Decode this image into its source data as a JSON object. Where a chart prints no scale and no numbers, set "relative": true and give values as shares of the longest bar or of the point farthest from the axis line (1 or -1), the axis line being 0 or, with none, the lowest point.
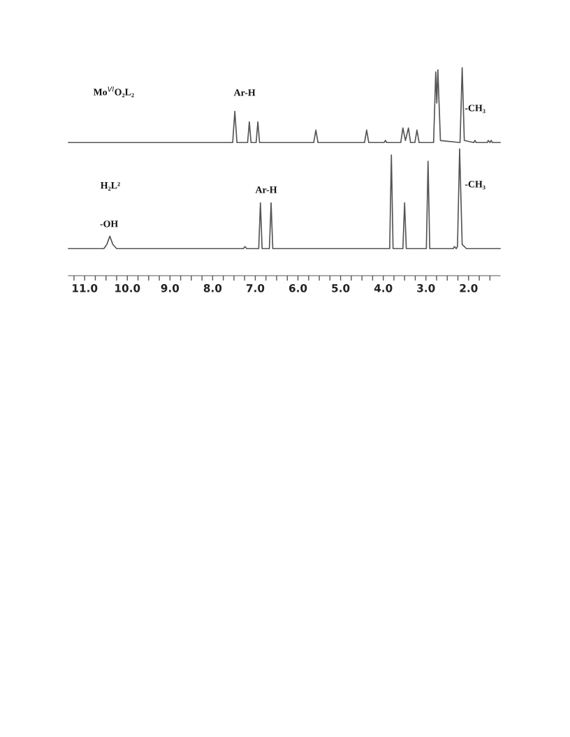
{
  "chart_data": {
    "type": "line",
    "relative": true,
    "xlim": [
      11.38,
      1.26
    ],
    "tick_labels": "x",
    "marker": "none",
    "line_style": "solid",
    "xticks": [
      {
        "value": 11.0,
        "label": "11.0"
      },
      {
        "value": 10.0,
        "label": "10.0"
      },
      {
        "value": 9.0,
        "label": "9.0"
      },
      {
        "value": 8.0,
        "label": "8.0"
      },
      {
        "value": 7.0,
        "label": "7.0"
      },
      {
        "value": 6.0,
        "label": "6.0"
      },
      {
        "value": 5.0,
        "label": "5.0"
      },
      {
        "value": 4.0,
        "label": "4.0"
      },
      {
        "value": 3.0,
        "label": "3.0"
      },
      {
        "value": 2.0,
        "label": "2.0"
      },
      {
        "value": 11.25,
        "label": null
      },
      {
        "value": 10.75,
        "label": null
      },
      {
        "value": 10.5,
        "label": null
      },
      {
        "value": 10.25,
        "label": null
      },
      {
        "value": 9.75,
        "label": null
      },
      {
        "value": 9.5,
        "label": null
      },
      {
        "value": 9.25,
        "label": null
      },
      {
        "value": 8.75,
        "label": null
      },
      {
        "value": 8.5,
        "label": null
      },
      {
        "value": 8.25,
        "label": null
      },
      {
        "value": 7.75,
        "label": null
      },
      {
        "value": 7.5,
        "label": null
      },
      {
        "value": 7.25,
        "label": null
      },
      {
        "value": 6.75,
        "label": null
      },
      {
        "value": 6.5,
        "label": null
      },
      {
        "value": 6.25,
        "label": null
      },
      {
        "value": 5.75,
        "label": null
      },
      {
        "value": 5.5,
        "label": null
      },
      {
        "value": 5.25,
        "label": null
      },
      {
        "value": 4.75,
        "label": null
      },
      {
        "value": 4.5,
        "label": null
      },
      {
        "value": 4.25,
        "label": null
      },
      {
        "value": 3.75,
        "label": null
      },
      {
        "value": 3.5,
        "label": null
      },
      {
        "value": 3.25,
        "label": null
      },
      {
        "value": 2.75,
        "label": null
      },
      {
        "value": 2.5,
        "label": null
      },
      {
        "value": 2.25,
        "label": null
      },
      {
        "value": 1.75,
        "label": null
      },
      {
        "value": 1.5,
        "label": null
      }
    ],
    "annotations": [
      "Mo$^{VI}$O₂L₂",
      "Ar-H",
      "-CH₃",
      "H₂L²",
      "-OH",
      "Ar-H",
      "-CH₃"
    ],
    "series": [
      {
        "color": "#555555",
        "x": [
          11.38,
          7.53,
          7.48,
          7.43,
          7.18,
          7.14,
          7.1,
          6.98,
          6.94,
          6.9,
          5.63,
          5.58,
          5.53,
          4.44,
          4.39,
          4.34,
          3.98,
          3.95,
          3.92,
          3.59,
          3.54,
          3.48,
          3.41,
          3.36,
          3.26,
          3.21,
          3.16,
          2.82,
          2.77,
          2.745,
          2.72,
          2.66,
          2.2,
          2.15,
          2.1,
          1.88,
          1.85,
          1.82,
          1.56,
          1.54,
          1.5,
          1.47,
          1.44,
          1.26
        ],
        "values": [
          0.64,
          0.64,
          0.79,
          0.64,
          0.64,
          0.74,
          0.64,
          0.64,
          0.74,
          0.64,
          0.64,
          0.7,
          0.64,
          0.64,
          0.7,
          0.64,
          0.64,
          0.65,
          0.64,
          0.64,
          0.71,
          0.65,
          0.71,
          0.64,
          0.64,
          0.7,
          0.64,
          0.64,
          0.98,
          0.83,
          0.99,
          0.65,
          0.64,
          1.0,
          0.65,
          0.64,
          0.65,
          0.64,
          0.64,
          0.65,
          0.64,
          0.65,
          0.64,
          0.64
        ]
      },
      {
        "color": "#555555",
        "x": [
          11.38,
          10.55,
          10.48,
          10.41,
          10.34,
          10.25,
          7.28,
          7.24,
          7.2,
          6.92,
          6.88,
          6.84,
          6.67,
          6.63,
          6.59,
          3.85,
          3.81,
          3.77,
          3.54,
          3.5,
          3.46,
          2.99,
          2.95,
          2.91,
          2.36,
          2.33,
          2.29,
          2.26,
          2.21,
          2.15,
          2.05,
          1.26
        ],
        "values": [
          0.13,
          0.13,
          0.15,
          0.19,
          0.15,
          0.13,
          0.13,
          0.14,
          0.13,
          0.13,
          0.35,
          0.13,
          0.13,
          0.35,
          0.13,
          0.13,
          0.58,
          0.13,
          0.13,
          0.35,
          0.13,
          0.13,
          0.55,
          0.13,
          0.13,
          0.14,
          0.13,
          0.14,
          0.61,
          0.15,
          0.13,
          0.13
        ]
      }
    ]
  }
}
